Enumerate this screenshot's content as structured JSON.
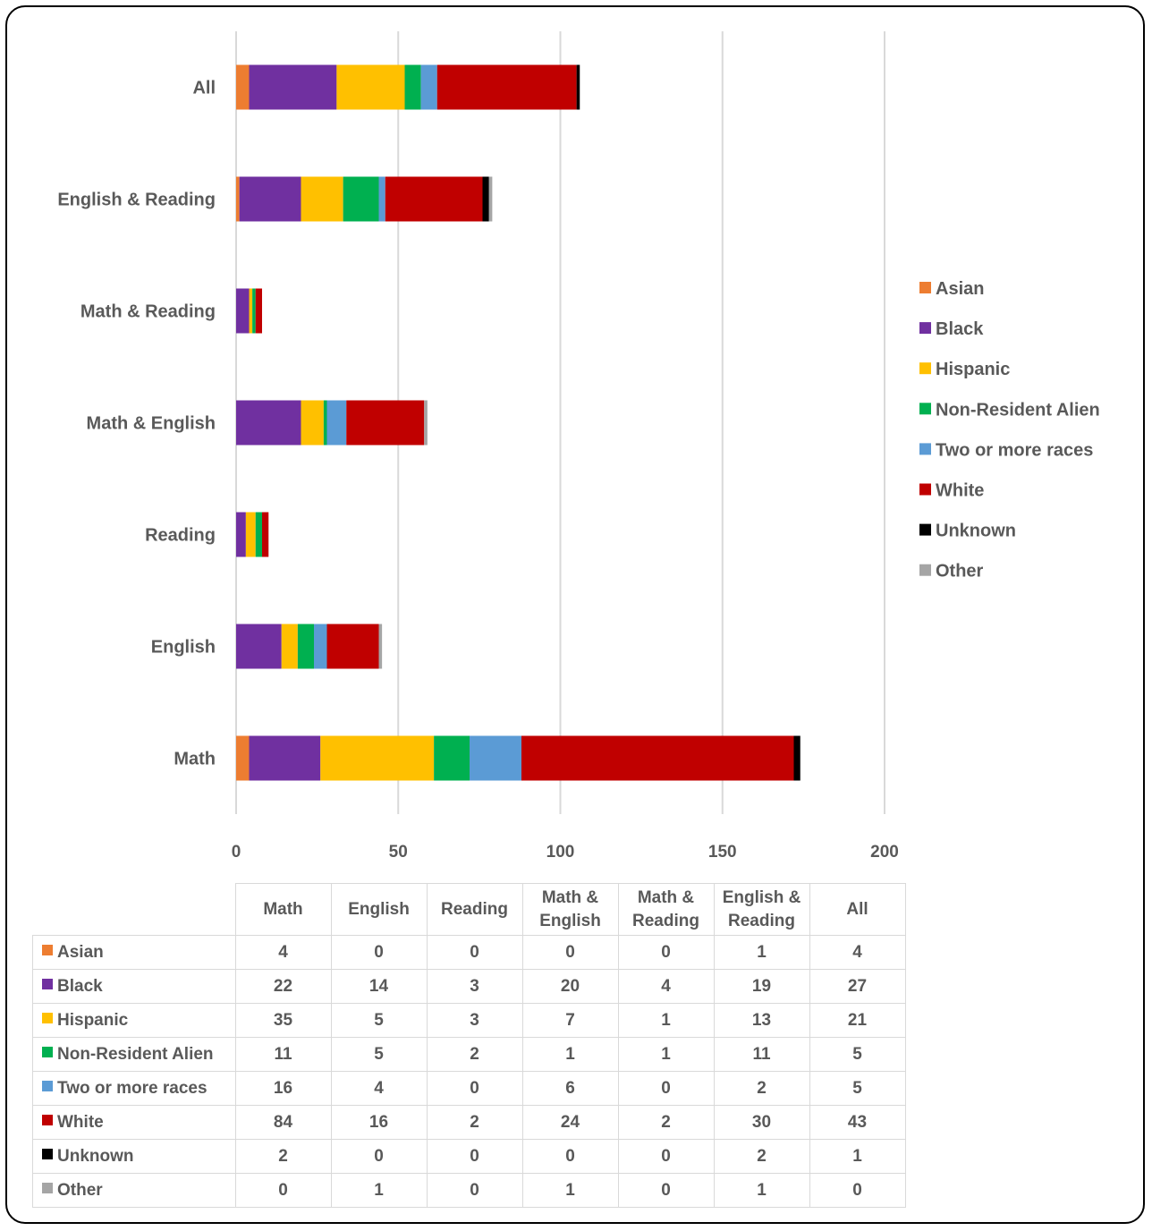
{
  "chart_data": {
    "type": "bar",
    "orientation": "horizontal",
    "stacked": true,
    "categories": [
      "Math",
      "English",
      "Reading",
      "Math & English",
      "Math & Reading",
      "English & Reading",
      "All"
    ],
    "xlim": [
      0,
      200
    ],
    "xticks": [
      "0",
      "50",
      "100",
      "150",
      "200"
    ],
    "grid": true,
    "legend_position": "right",
    "series": [
      {
        "name": "Asian",
        "color": "#ED7D31",
        "values": [
          4,
          0,
          0,
          0,
          0,
          1,
          4
        ]
      },
      {
        "name": "Black",
        "color": "#7030A0",
        "values": [
          22,
          14,
          3,
          20,
          4,
          19,
          27
        ]
      },
      {
        "name": "Hispanic",
        "color": "#FFC000",
        "values": [
          35,
          5,
          3,
          7,
          1,
          13,
          21
        ]
      },
      {
        "name": "Non-Resident Alien",
        "color": "#00B050",
        "values": [
          11,
          5,
          2,
          1,
          1,
          11,
          5
        ]
      },
      {
        "name": "Two or more races",
        "color": "#5B9BD5",
        "values": [
          16,
          4,
          0,
          6,
          0,
          2,
          5
        ]
      },
      {
        "name": "White",
        "color": "#C00000",
        "values": [
          84,
          16,
          2,
          24,
          2,
          30,
          43
        ]
      },
      {
        "name": "Unknown",
        "color": "#000000",
        "values": [
          2,
          0,
          0,
          0,
          0,
          2,
          1
        ]
      },
      {
        "name": "Other",
        "color": "#A5A5A5",
        "values": [
          0,
          1,
          0,
          1,
          0,
          1,
          0
        ]
      }
    ],
    "table_headers": [
      "Math",
      "English",
      "Reading",
      "Math & English",
      "Math & Reading",
      "English & Reading",
      "All"
    ]
  }
}
